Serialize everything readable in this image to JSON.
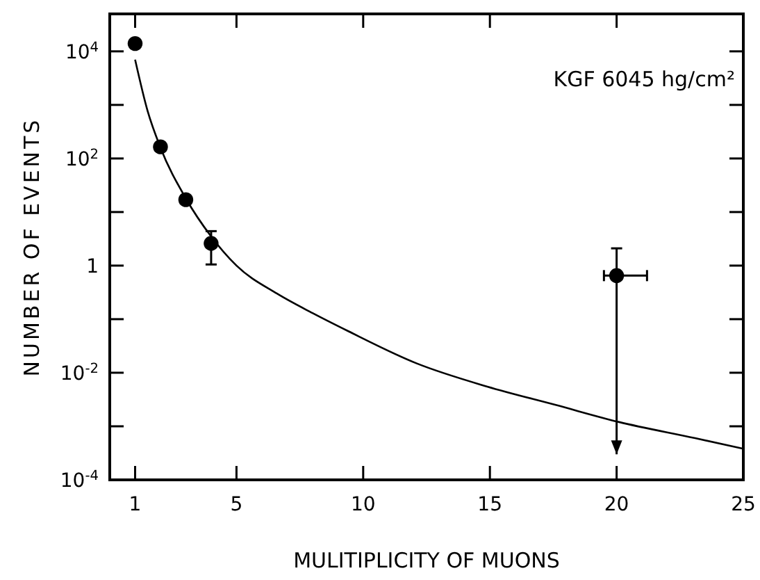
{
  "chart_data": {
    "type": "scatter",
    "xlabel": "MULITIPLICITY OF MUONS",
    "ylabel": "NUMBER OF EVENTS",
    "annotations": [
      "KGF 6045 hg/cm²"
    ],
    "log": "y",
    "xlim": [
      0,
      25
    ],
    "ylim": [
      0.0001,
      50000
    ],
    "xticks": [
      1,
      5,
      10,
      15,
      20,
      25
    ],
    "yticks": [
      {
        "value": 0.0001,
        "label": "10$^{-4}$"
      },
      {
        "value": 0.001,
        "label": null
      },
      {
        "value": 0.01,
        "label": "10$^{-2}$"
      },
      {
        "value": 0.1,
        "label": null
      },
      {
        "value": 1,
        "label": "1"
      },
      {
        "value": 10,
        "label": null
      },
      {
        "value": 100,
        "label": "10$^{2}$"
      },
      {
        "value": 1000,
        "label": null
      },
      {
        "value": 10000,
        "label": "10$^{4}$"
      }
    ],
    "marker": "circle",
    "grid": false,
    "series": [
      {
        "color": "#000000",
        "x": [
          1,
          2,
          3,
          4,
          20
        ],
        "values": [
          14000,
          165,
          17,
          2.6,
          0.65
        ],
        "errors": [
          null,
          null,
          null,
          [
            1.05,
            4.4
          ],
          [
            0.0003,
            2.1
          ]
        ],
        "xerrors": [
          null,
          null,
          null,
          null,
          [
            19.5,
            21.2
          ]
        ]
      },
      {
        "type": "line",
        "marker": "none",
        "color": "#000000",
        "x": [
          1,
          1.5,
          2,
          3,
          4,
          5,
          6.6,
          8,
          9.4,
          12.1,
          14.9,
          17.6,
          20.1,
          23.1,
          25
        ],
        "values": [
          7000,
          750,
          160,
          18,
          3.5,
          1,
          0.3,
          0.13,
          0.06,
          0.015,
          0.0055,
          0.0025,
          0.0012,
          0.0006,
          0.00038
        ]
      }
    ]
  }
}
